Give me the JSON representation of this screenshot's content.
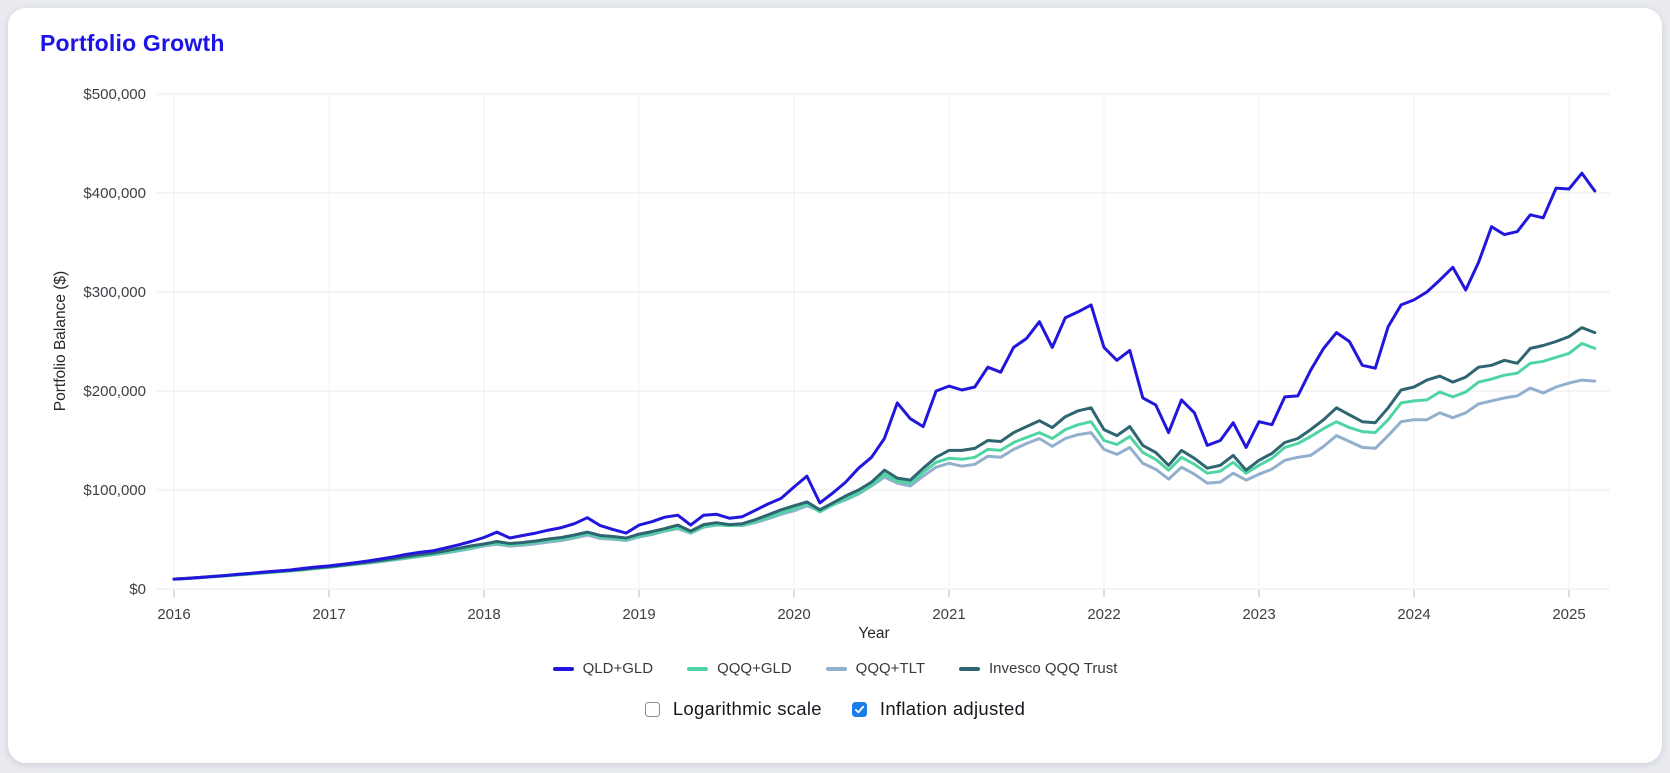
{
  "page": {
    "background": "#e9ebf1",
    "card_background": "#ffffff"
  },
  "title": "Portfolio Growth",
  "colors": {
    "title": "#1c13e6",
    "grid": "#e8e8e8",
    "grid_vertical": "#f1f1f4",
    "tick_mark": "#cfd2d6",
    "tick_text": "#3f3f46",
    "axis_title_text": "#27272a",
    "checkbox_accent": "#1a7de8"
  },
  "chart_data": {
    "type": "line",
    "title": "Portfolio Growth",
    "xlabel": "Year",
    "ylabel": "Portfolio Balance ($)",
    "x_tick_labels": [
      "2016",
      "2017",
      "2018",
      "2019",
      "2020",
      "2021",
      "2022",
      "2023",
      "2024",
      "2025"
    ],
    "y_tick_labels": [
      "$0",
      "$100,000",
      "$200,000",
      "$300,000",
      "$400,000",
      "$500,000"
    ],
    "ylim": [
      0,
      500000
    ],
    "x_range": {
      "start": "2016-01",
      "end": "2025-03",
      "interval": "monthly"
    },
    "unit": "USD thousands",
    "grid": true,
    "legend_position": "bottom",
    "draw_order": [
      2,
      1,
      3,
      0
    ],
    "series": [
      {
        "name": "QLD+GLD",
        "color": "#2316dc",
        "values": [
          10,
          10.6,
          11.6,
          12.6,
          13.6,
          14.8,
          16,
          17.2,
          18.2,
          19.2,
          20.8,
          22.2,
          23.3,
          24.8,
          26.5,
          28.3,
          30.3,
          32.5,
          35,
          37,
          38.5,
          41.5,
          44.5,
          48,
          52,
          57.5,
          51.5,
          54,
          56.5,
          59.5,
          62,
          66,
          72,
          64,
          60,
          56.5,
          64.5,
          68,
          72.5,
          74.5,
          64.5,
          74.5,
          75.5,
          71.5,
          73,
          79.5,
          86,
          91.5,
          103,
          114,
          87,
          97,
          108,
          122,
          133,
          152,
          188,
          172,
          164,
          200,
          205,
          201,
          204,
          224,
          219,
          244,
          253,
          270,
          244,
          274,
          280,
          287,
          244,
          231,
          241,
          193,
          186,
          158,
          191,
          178,
          145,
          150,
          168,
          143,
          169,
          166,
          194,
          195,
          221,
          243,
          259,
          250,
          226,
          223,
          265,
          287,
          292,
          300,
          312,
          325,
          302,
          330,
          366,
          358,
          361,
          378,
          375,
          405,
          404,
          420,
          402
        ]
      },
      {
        "name": "QQQ+GLD",
        "color": "#4fd5a4",
        "values": [
          10,
          10.6,
          11.4,
          12.3,
          13.2,
          14.2,
          15.2,
          16.2,
          17.2,
          18.2,
          19.3,
          20.7,
          22,
          23.4,
          24.9,
          26.4,
          28,
          29.7,
          31.4,
          33.3,
          35,
          37,
          39.2,
          41.5,
          44.5,
          46.5,
          44.6,
          45.6,
          47.2,
          49,
          50.5,
          53,
          56,
          52.5,
          51.5,
          50,
          53.5,
          56,
          59,
          62,
          57,
          63,
          65,
          64,
          64.5,
          68,
          72.5,
          77,
          81,
          86,
          78,
          85,
          91,
          97,
          105,
          116,
          109,
          107,
          118,
          128,
          132,
          131,
          133,
          141,
          140,
          148,
          153,
          158,
          152,
          161,
          166,
          169,
          150,
          146,
          154,
          138,
          131,
          120,
          133,
          126,
          117,
          119,
          128,
          117,
          125,
          132,
          143,
          147,
          154,
          162,
          169,
          163,
          159,
          158,
          171,
          188,
          190,
          191,
          199,
          194,
          199,
          209,
          212,
          216,
          218,
          228,
          230,
          234,
          238,
          248,
          243
        ]
      },
      {
        "name": "QQQ+TLT",
        "color": "#92afce",
        "values": [
          10,
          10.7,
          11.5,
          12.4,
          13.4,
          14.4,
          15.5,
          16.6,
          17.6,
          18.5,
          19.5,
          20.8,
          22,
          23.3,
          24.7,
          26.2,
          27.7,
          29.3,
          31,
          32.8,
          34.5,
          36.4,
          38.5,
          40.7,
          43.5,
          45.2,
          43.3,
          44.2,
          45.8,
          47.5,
          49,
          51.5,
          54.4,
          51,
          50.2,
          49,
          52.5,
          55,
          58.5,
          61,
          56.5,
          62.5,
          64.5,
          64.5,
          64,
          67,
          71,
          75.5,
          79,
          84,
          79,
          85,
          90,
          96,
          104,
          113,
          107,
          104,
          114,
          123,
          127,
          124,
          126,
          134,
          133,
          141,
          147,
          152,
          144,
          152,
          156,
          158,
          141,
          136,
          143,
          127,
          121,
          111,
          123,
          116,
          107,
          108,
          117,
          110,
          116,
          121,
          130,
          133,
          135,
          144,
          155,
          149,
          143,
          142,
          155,
          169,
          171,
          171,
          178,
          173,
          178,
          187,
          190,
          193,
          195,
          203,
          198,
          204,
          208,
          211,
          210
        ]
      },
      {
        "name": "Invesco QQQ Trust",
        "color": "#2f6471",
        "values": [
          10,
          10.8,
          11.7,
          12.7,
          13.6,
          14.6,
          15.7,
          16.8,
          17.8,
          18.8,
          20,
          21.3,
          22.5,
          24,
          25.5,
          27.2,
          28.9,
          30.7,
          32.6,
          34.6,
          36.3,
          38.5,
          41,
          43.5,
          45.5,
          48,
          46,
          47,
          48.5,
          50.5,
          52,
          54.5,
          57.5,
          54,
          53,
          51.5,
          55.5,
          58,
          61,
          64.5,
          58.5,
          65,
          67,
          65,
          66,
          70,
          75,
          80,
          84,
          88,
          80,
          87,
          94,
          100,
          108,
          120,
          112,
          110,
          122,
          133,
          140,
          140,
          142,
          150,
          149,
          158,
          164,
          170,
          163,
          174,
          180,
          183,
          161,
          155,
          164,
          145,
          138,
          125,
          140,
          132,
          122,
          125,
          135,
          120,
          130,
          137,
          148,
          152,
          161,
          171,
          183,
          176,
          169,
          168,
          183,
          201,
          204,
          211,
          215,
          209,
          214,
          224,
          226,
          231,
          228,
          243,
          246,
          250,
          255,
          264,
          259
        ]
      }
    ]
  },
  "controls": {
    "logarithmic": {
      "label": "Logarithmic scale",
      "checked": false
    },
    "inflation": {
      "label": "Inflation adjusted",
      "checked": true
    }
  }
}
